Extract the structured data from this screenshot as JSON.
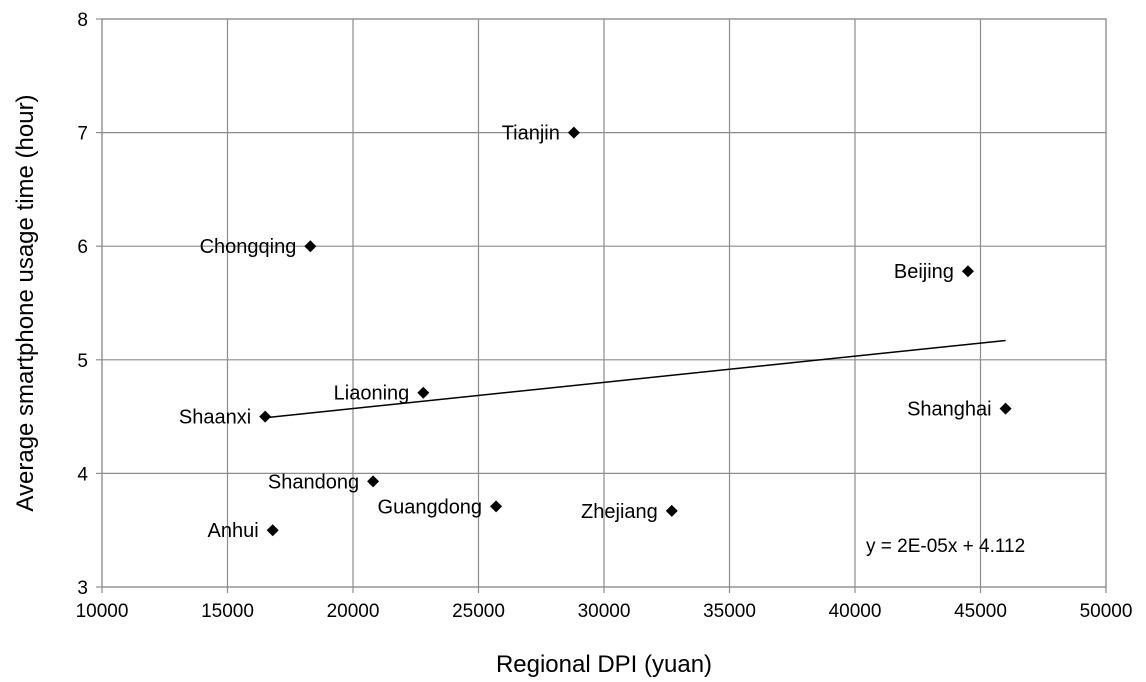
{
  "chart_data": {
    "type": "scatter",
    "title": "",
    "xlabel": "Regional DPI (yuan)",
    "ylabel": "Average smartphone usage time (hour)",
    "xlim": [
      10000,
      50000
    ],
    "ylim": [
      3,
      8
    ],
    "x_ticks": [
      "10000",
      "15000",
      "20000",
      "25000",
      "30000",
      "35000",
      "40000",
      "45000",
      "50000"
    ],
    "y_ticks": [
      "3",
      "4",
      "5",
      "6",
      "7",
      "8"
    ],
    "grid": true,
    "marker": "diamond",
    "marker_color": "#000000",
    "points": [
      {
        "label": "Tianjin",
        "x": 28800,
        "y": 7.0
      },
      {
        "label": "Chongqing",
        "x": 18300,
        "y": 6.0
      },
      {
        "label": "Beijing",
        "x": 44500,
        "y": 5.78
      },
      {
        "label": "Liaoning",
        "x": 22800,
        "y": 4.71
      },
      {
        "label": "Shaanxi",
        "x": 16500,
        "y": 4.5
      },
      {
        "label": "Shanghai",
        "x": 46000,
        "y": 4.57
      },
      {
        "label": "Shandong",
        "x": 20800,
        "y": 3.93
      },
      {
        "label": "Guangdong",
        "x": 25700,
        "y": 3.71
      },
      {
        "label": "Zhejiang",
        "x": 32700,
        "y": 3.67
      },
      {
        "label": "Anhui",
        "x": 16800,
        "y": 3.5
      }
    ],
    "trendline": {
      "equation": "y = 2E-05x + 4.112",
      "x_range": [
        16500,
        46000
      ],
      "y_range": [
        4.49,
        5.17
      ]
    }
  }
}
